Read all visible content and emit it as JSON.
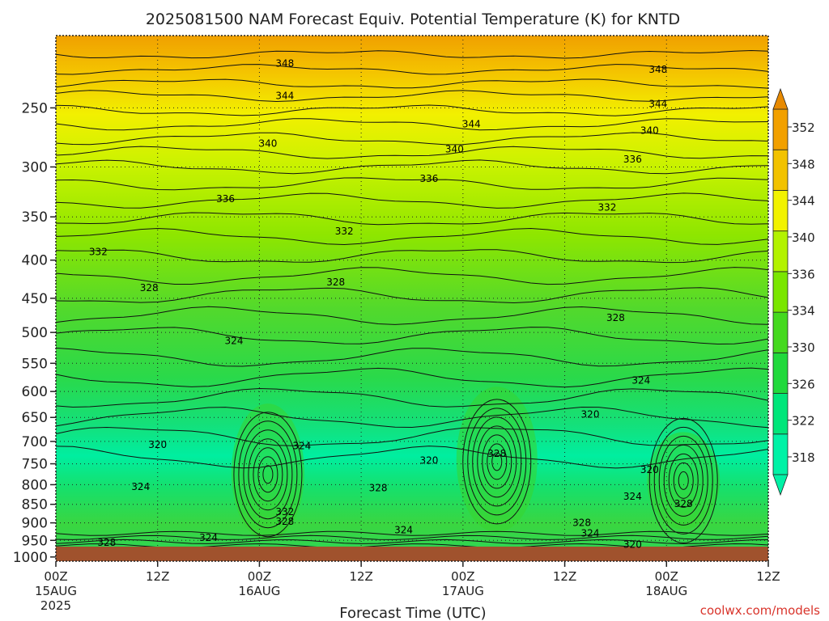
{
  "chart_data": {
    "type": "heatmap",
    "title": "2025081500 NAM Forecast Equiv. Potential Temperature (K) for KNTD",
    "xlabel": "Forecast Time (UTC)",
    "ylabel": "",
    "x_ticks": [
      {
        "hour": 0,
        "label": "00Z",
        "sub": "15AUG",
        "sub2": "2025"
      },
      {
        "hour": 12,
        "label": "12Z",
        "sub": "",
        "sub2": ""
      },
      {
        "hour": 24,
        "label": "00Z",
        "sub": "16AUG",
        "sub2": ""
      },
      {
        "hour": 36,
        "label": "12Z",
        "sub": "",
        "sub2": ""
      },
      {
        "hour": 48,
        "label": "00Z",
        "sub": "17AUG",
        "sub2": ""
      },
      {
        "hour": 60,
        "label": "12Z",
        "sub": "",
        "sub2": ""
      },
      {
        "hour": 72,
        "label": "00Z",
        "sub": "18AUG",
        "sub2": ""
      },
      {
        "hour": 84,
        "label": "12Z",
        "sub": "",
        "sub2": ""
      }
    ],
    "xlim": [
      0,
      84
    ],
    "y_ticks": [
      250,
      300,
      350,
      400,
      450,
      500,
      550,
      600,
      650,
      700,
      750,
      800,
      850,
      900,
      950,
      1000
    ],
    "ylim": [
      200,
      1013
    ],
    "y_scale": "log",
    "colorbar": {
      "levels": [
        318,
        322,
        326,
        330,
        334,
        336,
        340,
        344,
        348,
        352
      ],
      "tick_labels": [
        "318",
        "322",
        "326",
        "330",
        "334",
        "336",
        "340",
        "344",
        "348",
        "352"
      ],
      "colors": [
        "#00f2a6",
        "#00e67a",
        "#21d93c",
        "#45d91f",
        "#7ae600",
        "#b3f200",
        "#f2f200",
        "#f2c200",
        "#f2a000",
        "#e88a00"
      ]
    },
    "contour_labels": [
      {
        "hour": 27,
        "p": 218,
        "text": "348"
      },
      {
        "hour": 71,
        "p": 222,
        "text": "348"
      },
      {
        "hour": 27,
        "p": 241,
        "text": "344"
      },
      {
        "hour": 49,
        "p": 263,
        "text": "344"
      },
      {
        "hour": 71,
        "p": 247,
        "text": "344"
      },
      {
        "hour": 25,
        "p": 279,
        "text": "340"
      },
      {
        "hour": 47,
        "p": 284,
        "text": "340"
      },
      {
        "hour": 70,
        "p": 268,
        "text": "340"
      },
      {
        "hour": 68,
        "p": 293,
        "text": "336"
      },
      {
        "hour": 44,
        "p": 311,
        "text": "336"
      },
      {
        "hour": 20,
        "p": 331,
        "text": "336"
      },
      {
        "hour": 65,
        "p": 340,
        "text": "332"
      },
      {
        "hour": 34,
        "p": 366,
        "text": "332"
      },
      {
        "hour": 5,
        "p": 390,
        "text": "332"
      },
      {
        "hour": 11,
        "p": 436,
        "text": "328"
      },
      {
        "hour": 33,
        "p": 428,
        "text": "328"
      },
      {
        "hour": 66,
        "p": 478,
        "text": "328"
      },
      {
        "hour": 21,
        "p": 513,
        "text": "324"
      },
      {
        "hour": 69,
        "p": 580,
        "text": "324"
      },
      {
        "hour": 63,
        "p": 644,
        "text": "320"
      },
      {
        "hour": 12,
        "p": 707,
        "text": "320"
      },
      {
        "hour": 29,
        "p": 710,
        "text": "324"
      },
      {
        "hour": 44,
        "p": 742,
        "text": "320"
      },
      {
        "hour": 52,
        "p": 727,
        "text": "328"
      },
      {
        "hour": 70,
        "p": 764,
        "text": "320"
      },
      {
        "hour": 10,
        "p": 805,
        "text": "324"
      },
      {
        "hour": 38,
        "p": 808,
        "text": "328"
      },
      {
        "hour": 68,
        "p": 830,
        "text": "324"
      },
      {
        "hour": 74,
        "p": 848,
        "text": "328"
      },
      {
        "hour": 27,
        "p": 870,
        "text": "332"
      },
      {
        "hour": 27,
        "p": 896,
        "text": "328"
      },
      {
        "hour": 41,
        "p": 920,
        "text": "324"
      },
      {
        "hour": 62,
        "p": 900,
        "text": "328"
      },
      {
        "hour": 63,
        "p": 929,
        "text": "324"
      },
      {
        "hour": 6,
        "p": 957,
        "text": "328"
      },
      {
        "hour": 18,
        "p": 942,
        "text": "324"
      },
      {
        "hour": 68,
        "p": 963,
        "text": "320"
      }
    ]
  },
  "credit": "coolwx.com/models"
}
